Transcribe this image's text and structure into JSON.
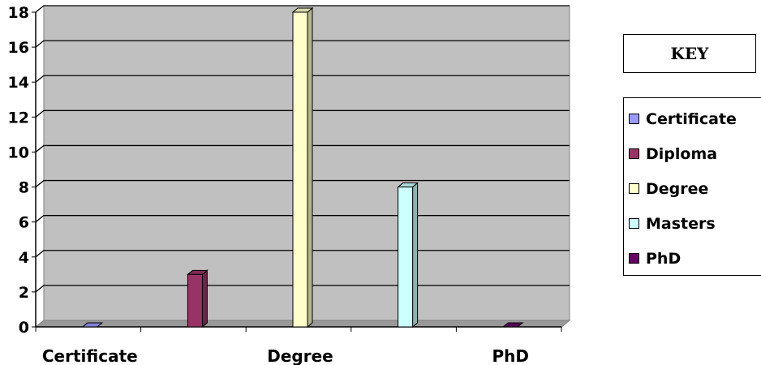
{
  "chart_data": {
    "type": "bar",
    "categories": [
      "Certificate",
      "Diploma",
      "Degree",
      "Masters",
      "PhD"
    ],
    "x_tick_labels": [
      "Certificate",
      "Degree",
      "PhD"
    ],
    "values": [
      0,
      3,
      18,
      8,
      0
    ],
    "colors": [
      "#9999ff",
      "#993366",
      "#ffffcc",
      "#ccffff",
      "#660066"
    ],
    "ylim": [
      0,
      18
    ],
    "yticks": [
      0,
      2,
      4,
      6,
      8,
      10,
      12,
      14,
      16,
      18
    ],
    "ytick_labels": [
      "0",
      "2",
      "4",
      "6",
      "8",
      "10",
      "12",
      "14",
      "16",
      "18"
    ],
    "grid": true,
    "plot_background": "#c0c0c0",
    "legend_position": "right"
  },
  "key_title": "KEY",
  "legend": [
    {
      "label": "Certificate",
      "color": "#9999ff"
    },
    {
      "label": "Diploma",
      "color": "#993366"
    },
    {
      "label": "Degree",
      "color": "#ffffcc"
    },
    {
      "label": "Masters",
      "color": "#ccffff"
    },
    {
      "label": "PhD",
      "color": "#660066"
    }
  ]
}
